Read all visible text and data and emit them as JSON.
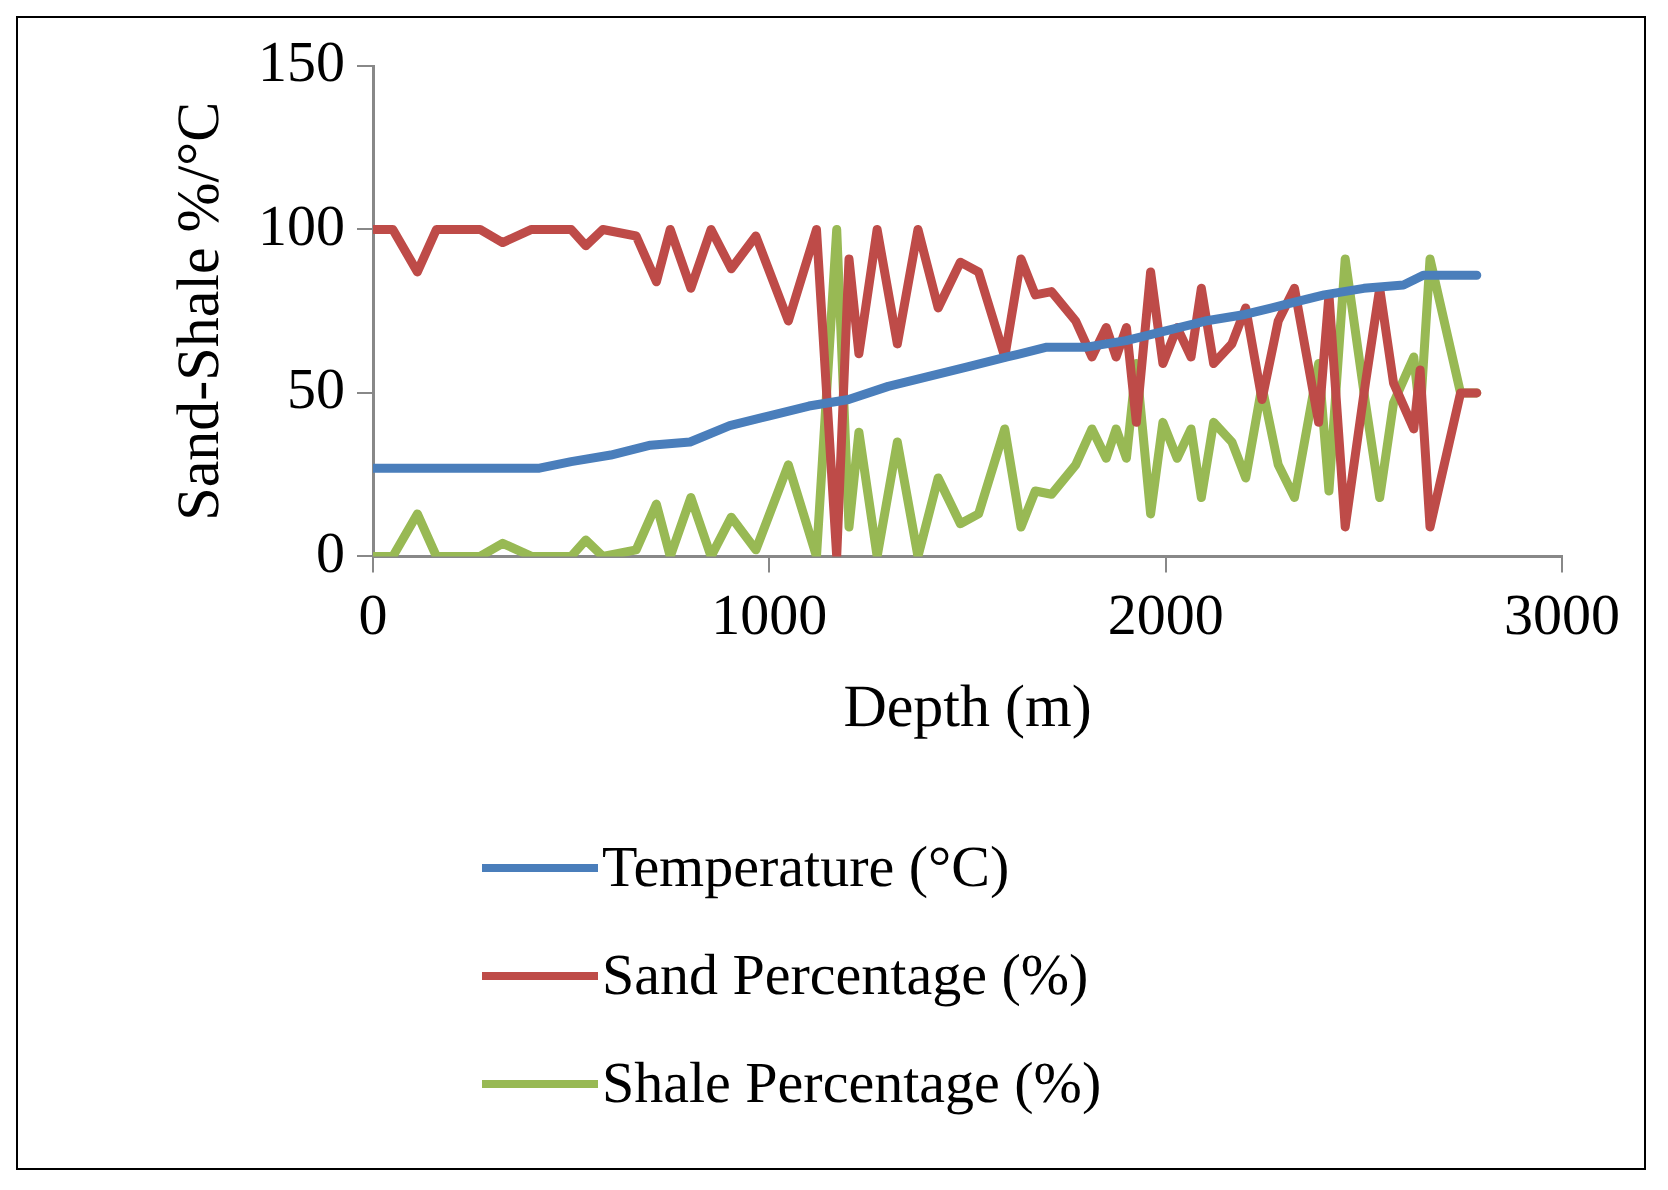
{
  "chart_data": {
    "type": "line",
    "xlabel": "Depth (m)",
    "ylabel": "Sand-Shale %/°C",
    "xlim": [
      0,
      3000
    ],
    "xticks": [
      0,
      1000,
      2000,
      3000
    ],
    "ylim": [
      0,
      150
    ],
    "yticks": [
      0,
      50,
      100,
      150
    ],
    "grid": false,
    "legend": "bottom",
    "marker": "none",
    "line_style": "solid",
    "series": [
      {
        "name": "Temperature  (°C)",
        "color": "#4a7ebb",
        "x": [
          0,
          100,
          200,
          300,
          420,
          500,
          600,
          700,
          800,
          900,
          1000,
          1100,
          1200,
          1300,
          1400,
          1500,
          1600,
          1700,
          1800,
          1900,
          2000,
          2100,
          2200,
          2300,
          2400,
          2500,
          2600,
          2650,
          2785
        ],
        "values": [
          27,
          27,
          27,
          27,
          27,
          29,
          31,
          34,
          35,
          40,
          43,
          46,
          48,
          52,
          55,
          58,
          61,
          64,
          64,
          66,
          69,
          72,
          74,
          77,
          80,
          82,
          83,
          86,
          86
        ]
      },
      {
        "name": "Sand Percentage (%)",
        "color": "#be4b48",
        "x": [
          0,
          50,
          112,
          160,
          270,
          327,
          400,
          500,
          537,
          580,
          664,
          715,
          750,
          802,
          853,
          904,
          966,
          1048,
          1119,
          1170,
          1201,
          1226,
          1272,
          1323,
          1375,
          1426,
          1482,
          1528,
          1594,
          1635,
          1671,
          1712,
          1773,
          1814,
          1850,
          1875,
          1901,
          1926,
          1962,
          1993,
          2029,
          2064,
          2090,
          2121,
          2167,
          2202,
          2243,
          2284,
          2325,
          2386,
          2412,
          2453,
          2504,
          2540,
          2575,
          2626,
          2642,
          2667,
          2744,
          2785
        ],
        "values": [
          100,
          100,
          87,
          100,
          100,
          96,
          100,
          100,
          95,
          100,
          98,
          84,
          100,
          82,
          100,
          88,
          98,
          72,
          100,
          0,
          91,
          62,
          100,
          65,
          100,
          76,
          90,
          87,
          61,
          91,
          80,
          81,
          72,
          61,
          70,
          61,
          70,
          41,
          87,
          59,
          70,
          61,
          82,
          59,
          65,
          76,
          48,
          72,
          82,
          41,
          80,
          9,
          53,
          82,
          53,
          39,
          57,
          9,
          50,
          50
        ]
      },
      {
        "name": "Shale Percentage (%)",
        "color": "#98b954",
        "x": [
          0,
          50,
          112,
          160,
          270,
          327,
          400,
          500,
          537,
          580,
          664,
          715,
          750,
          802,
          853,
          904,
          966,
          1048,
          1119,
          1170,
          1201,
          1226,
          1272,
          1323,
          1375,
          1426,
          1482,
          1528,
          1594,
          1635,
          1671,
          1712,
          1773,
          1814,
          1850,
          1875,
          1901,
          1926,
          1962,
          1993,
          2029,
          2064,
          2090,
          2121,
          2167,
          2202,
          2243,
          2284,
          2325,
          2386,
          2412,
          2453,
          2504,
          2540,
          2575,
          2626,
          2642,
          2667,
          2744,
          2785
        ],
        "values": [
          0,
          0,
          13,
          0,
          0,
          4,
          0,
          0,
          5,
          0,
          2,
          16,
          0,
          18,
          0,
          12,
          2,
          28,
          0,
          100,
          9,
          38,
          0,
          35,
          0,
          24,
          10,
          13,
          39,
          9,
          20,
          19,
          28,
          39,
          30,
          39,
          30,
          59,
          13,
          41,
          30,
          39,
          18,
          41,
          35,
          24,
          52,
          28,
          18,
          59,
          20,
          91,
          47,
          18,
          47,
          61,
          43,
          91,
          50,
          50
        ]
      }
    ]
  }
}
